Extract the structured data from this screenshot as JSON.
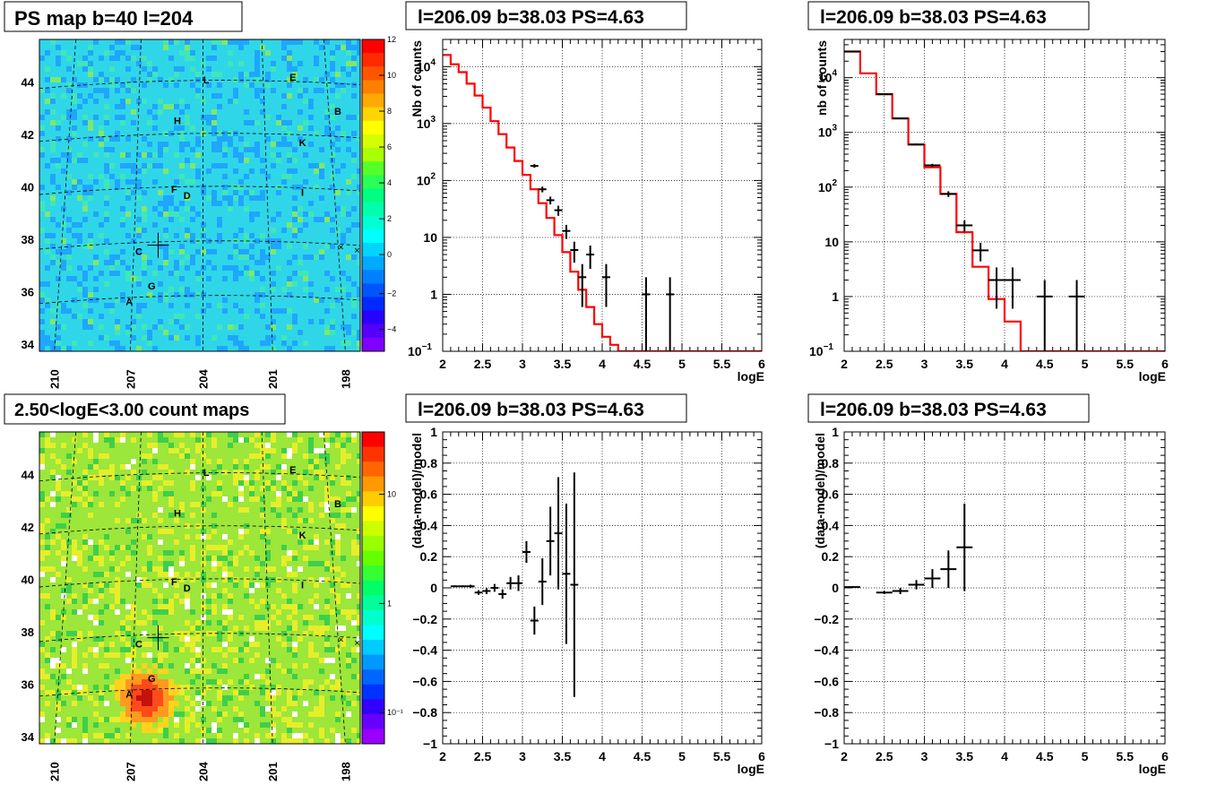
{
  "panels": {
    "ps_map": {
      "title": "PS map b=40 l=204",
      "y_ticks": [
        "44",
        "42",
        "40",
        "38",
        "36",
        "34"
      ],
      "x_ticks": [
        "210",
        "207",
        "204",
        "201",
        "198"
      ],
      "colorbar_ticks": [
        "12",
        "10",
        "8",
        "6",
        "4",
        "2",
        "0",
        "−2",
        "−4"
      ],
      "source_labels": [
        "L",
        "E",
        "B",
        "H",
        "K",
        "F",
        "D",
        "I",
        "C",
        "G",
        "A"
      ],
      "base_color": "#2fd6e8"
    },
    "count_map": {
      "title": "2.50<logE<3.00 count maps",
      "y_ticks": [
        "44",
        "42",
        "40",
        "38",
        "36",
        "34"
      ],
      "x_ticks": [
        "210",
        "207",
        "204",
        "201",
        "198"
      ],
      "colorbar_ticks": [
        "10",
        "1",
        "10⁻¹"
      ],
      "source_labels": [
        "L",
        "E",
        "B",
        "H",
        "K",
        "F",
        "D",
        "I",
        "C",
        "G",
        "A"
      ],
      "base_color": "#9de63a"
    },
    "spectrum_left": {
      "title": "l=206.09 b=38.03 PS=4.63",
      "xlabel": "logE",
      "ylabel": "Nb of counts"
    },
    "spectrum_right": {
      "title": "l=206.09 b=38.03 PS=4.63",
      "xlabel": "logE",
      "ylabel": "nb of counts"
    },
    "residual_left": {
      "title": "l=206.09 b=38.03 PS=4.63",
      "xlabel": "logE",
      "ylabel": "(data-model)/model"
    },
    "residual_right": {
      "title": "l=206.09 b=38.03 PS=4.63",
      "xlabel": "logE",
      "ylabel": "(data-model)/model"
    }
  },
  "colors": {
    "model_line": "#ff0000",
    "data_points": "#000000",
    "grid": "#000000"
  },
  "chart_data": [
    {
      "type": "heatmap",
      "title": "PS map b=40 l=204",
      "xlabel": "",
      "ylabel": "",
      "x_ticks": [
        210,
        207,
        204,
        201,
        198
      ],
      "y_ticks": [
        44,
        42,
        40,
        38,
        36,
        34
      ],
      "zlim": [
        -5,
        12
      ],
      "sources": [
        "L",
        "E",
        "B",
        "H",
        "K",
        "F",
        "D",
        "I",
        "C",
        "G",
        "A"
      ]
    },
    {
      "type": "line",
      "title": "l=206.09 b=38.03 PS=4.63",
      "xlabel": "logE",
      "ylabel": "Nb of counts",
      "xlim": [
        2,
        6
      ],
      "ylim": [
        0.1,
        30000
      ],
      "yscale": "log",
      "x_ticks": [
        2,
        2.5,
        3,
        3.5,
        4,
        4.5,
        5,
        5.5,
        6
      ],
      "grid": true,
      "series": [
        {
          "type": "step",
          "color": "#ff0000",
          "edges": [
            2.0,
            2.1,
            2.2,
            2.3,
            2.4,
            2.5,
            2.6,
            2.7,
            2.8,
            2.9,
            3.0,
            3.1,
            3.2,
            3.3,
            3.4,
            3.5,
            3.6,
            3.7,
            3.8,
            3.9,
            4.0,
            4.1,
            4.2,
            6.0
          ],
          "values": [
            16000,
            11000,
            8000,
            5000,
            3100,
            1900,
            1100,
            650,
            380,
            220,
            125,
            70,
            40,
            22,
            11,
            5.5,
            2.5,
            1.2,
            0.6,
            0.3,
            0.18,
            0.13,
            0.1
          ]
        },
        {
          "type": "errorbar",
          "color": "#000000",
          "x": [
            3.15,
            3.25,
            3.35,
            3.45,
            3.55,
            3.65,
            3.75,
            3.85,
            4.05,
            4.55,
            4.85
          ],
          "y": [
            180,
            70,
            45,
            30,
            13,
            6,
            2,
            5,
            2,
            1,
            1
          ],
          "yerr_low": [
            13,
            8,
            7,
            6,
            3.6,
            2.4,
            1.4,
            2.2,
            1.4,
            1,
            1
          ],
          "yerr_high": [
            13,
            8,
            7,
            6,
            3.6,
            2.4,
            1.4,
            2.2,
            1.4,
            1,
            1
          ],
          "xerr": 0.05
        }
      ]
    },
    {
      "type": "line",
      "title": "l=206.09 b=38.03 PS=4.63",
      "xlabel": "logE",
      "ylabel": "nb of counts",
      "xlim": [
        2,
        6
      ],
      "ylim": [
        0.1,
        50000
      ],
      "yscale": "log",
      "x_ticks": [
        2,
        2.5,
        3,
        3.5,
        4,
        4.5,
        5,
        5.5,
        6
      ],
      "grid": true,
      "series": [
        {
          "type": "step",
          "color": "#ff0000",
          "edges": [
            2.0,
            2.2,
            2.4,
            2.6,
            2.8,
            3.0,
            3.2,
            3.4,
            3.6,
            3.8,
            4.0,
            4.2,
            6.0
          ],
          "values": [
            30000,
            12000,
            5000,
            1800,
            600,
            230,
            75,
            15,
            3.5,
            0.9,
            0.35,
            0.1
          ]
        },
        {
          "type": "errorbar",
          "color": "#000000",
          "x": [
            2.1,
            2.5,
            2.7,
            2.9,
            3.1,
            3.3,
            3.5,
            3.7,
            3.9,
            4.1,
            4.5,
            4.9
          ],
          "y": [
            30000,
            5000,
            1800,
            600,
            250,
            75,
            20,
            7,
            2,
            2,
            1,
            1
          ],
          "yerr_low": [
            170,
            70,
            42,
            24,
            16,
            9,
            4.5,
            2.6,
            1.4,
            1.4,
            1,
            1
          ],
          "yerr_high": [
            170,
            70,
            42,
            24,
            16,
            9,
            4.5,
            2.6,
            1.4,
            1.4,
            1,
            1
          ],
          "xerr": 0.1
        }
      ]
    },
    {
      "type": "heatmap",
      "title": "2.50<logE<3.00 count maps",
      "xlabel": "",
      "ylabel": "",
      "x_ticks": [
        210,
        207,
        204,
        201,
        198
      ],
      "y_ticks": [
        44,
        42,
        40,
        38,
        36,
        34
      ],
      "zscale": "log",
      "sources": [
        "L",
        "E",
        "B",
        "H",
        "K",
        "F",
        "D",
        "I",
        "C",
        "G",
        "A"
      ]
    },
    {
      "type": "scatter",
      "title": "l=206.09 b=38.03 PS=4.63",
      "xlabel": "logE",
      "ylabel": "(data-model)/model",
      "xlim": [
        2,
        6
      ],
      "ylim": [
        -1,
        1
      ],
      "x_ticks": [
        2,
        2.5,
        3,
        3.5,
        4,
        4.5,
        5,
        5.5,
        6
      ],
      "y_ticks": [
        -1,
        -0.8,
        -0.6,
        -0.4,
        -0.2,
        0,
        0.2,
        0.4,
        0.6,
        0.8,
        1
      ],
      "grid": true,
      "series": [
        {
          "type": "errorbar",
          "color": "#000000",
          "x": [
            2.15,
            2.25,
            2.35,
            2.45,
            2.55,
            2.65,
            2.75,
            2.85,
            2.95,
            3.05,
            3.15,
            3.25,
            3.35,
            3.45,
            3.55,
            3.65
          ],
          "y": [
            0.01,
            0.01,
            0.01,
            -0.03,
            -0.02,
            0.0,
            -0.04,
            0.03,
            0.03,
            0.23,
            -0.21,
            0.04,
            0.3,
            0.35,
            0.09,
            0.02
          ],
          "yerr": [
            0.005,
            0.005,
            0.01,
            0.015,
            0.02,
            0.025,
            0.03,
            0.04,
            0.05,
            0.07,
            0.09,
            0.15,
            0.22,
            0.36,
            0.45,
            0.72
          ],
          "xerr": 0.05
        }
      ]
    },
    {
      "type": "scatter",
      "title": "l=206.09 b=38.03 PS=4.63",
      "xlabel": "logE",
      "ylabel": "(data-model)/model",
      "xlim": [
        2,
        6
      ],
      "ylim": [
        -1,
        1
      ],
      "x_ticks": [
        2,
        2.5,
        3,
        3.5,
        4,
        4.5,
        5,
        5.5,
        6
      ],
      "y_ticks": [
        -1,
        -0.8,
        -0.6,
        -0.4,
        -0.2,
        0,
        0.2,
        0.4,
        0.6,
        0.8,
        1
      ],
      "grid": true,
      "series": [
        {
          "type": "errorbar",
          "color": "#000000",
          "x": [
            2.1,
            2.5,
            2.7,
            2.9,
            3.1,
            3.3,
            3.5
          ],
          "y": [
            0.005,
            -0.03,
            -0.02,
            0.02,
            0.06,
            0.12,
            0.26
          ],
          "yerr": [
            0.005,
            0.01,
            0.02,
            0.03,
            0.06,
            0.12,
            0.28
          ],
          "xerr": 0.1
        }
      ]
    }
  ]
}
